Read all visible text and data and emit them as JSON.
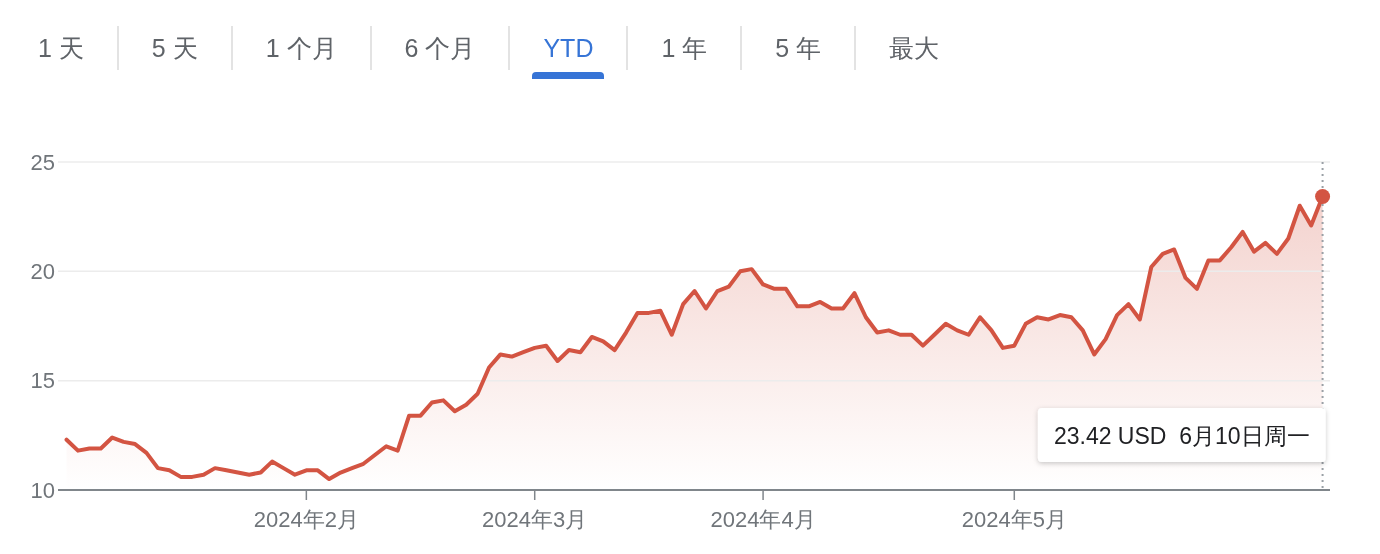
{
  "chart_data": {
    "type": "area",
    "categories": [
      null,
      null,
      null,
      null,
      null,
      null,
      null,
      null,
      null,
      null,
      null,
      null,
      null,
      null,
      null,
      null,
      null,
      null,
      null,
      null,
      null,
      "2024年2月",
      null,
      null,
      null,
      null,
      null,
      null,
      null,
      null,
      null,
      null,
      null,
      null,
      null,
      null,
      null,
      null,
      null,
      null,
      null,
      "2024年3月",
      null,
      null,
      null,
      null,
      null,
      null,
      null,
      null,
      null,
      null,
      null,
      null,
      null,
      null,
      null,
      null,
      null,
      null,
      null,
      "2024年4月",
      null,
      null,
      null,
      null,
      null,
      null,
      null,
      null,
      null,
      null,
      null,
      null,
      null,
      null,
      null,
      null,
      null,
      null,
      null,
      null,
      null,
      "2024年5月",
      null,
      null,
      null,
      null,
      null,
      null,
      null,
      null,
      null,
      null,
      null,
      null,
      null,
      null,
      null,
      null,
      null,
      null,
      null,
      null,
      null,
      null,
      null,
      null,
      null,
      null,
      null
    ],
    "values": [
      12.3,
      11.8,
      11.9,
      11.9,
      12.4,
      12.2,
      12.1,
      11.7,
      11.0,
      10.9,
      10.6,
      10.6,
      10.7,
      11.0,
      10.9,
      10.8,
      10.7,
      10.8,
      11.3,
      11.0,
      10.7,
      10.9,
      10.9,
      10.5,
      10.8,
      11.0,
      11.2,
      11.6,
      12.0,
      11.8,
      13.4,
      13.4,
      14.0,
      14.1,
      13.6,
      13.9,
      14.4,
      15.6,
      16.2,
      16.1,
      16.3,
      16.5,
      16.6,
      15.9,
      16.4,
      16.3,
      17.0,
      16.8,
      16.4,
      17.2,
      18.1,
      18.1,
      18.2,
      17.1,
      18.5,
      19.1,
      18.3,
      19.1,
      19.3,
      20.0,
      20.1,
      19.4,
      19.2,
      19.2,
      18.4,
      18.4,
      18.6,
      18.3,
      18.3,
      19.0,
      17.9,
      17.2,
      17.3,
      17.1,
      17.1,
      16.6,
      17.1,
      17.6,
      17.3,
      17.1,
      17.9,
      17.3,
      16.5,
      16.6,
      17.6,
      17.9,
      17.8,
      18.0,
      17.9,
      17.3,
      16.2,
      16.9,
      18.0,
      18.5,
      17.8,
      20.2,
      20.8,
      21.0,
      19.7,
      19.2,
      20.5,
      20.5,
      21.1,
      21.8,
      20.9,
      21.3,
      20.8,
      21.5,
      23.0,
      22.1,
      23.42
    ],
    "color": "#d35442",
    "ylim": [
      10,
      25
    ],
    "yticks": [
      10,
      15,
      20,
      25
    ],
    "grid": "y",
    "annotations": [
      "1 天",
      "5 天",
      "1 个月",
      "6 个月",
      "YTD",
      "1 年",
      "5 年",
      "最大",
      "23.42 USD  6月10日周一"
    ]
  }
}
